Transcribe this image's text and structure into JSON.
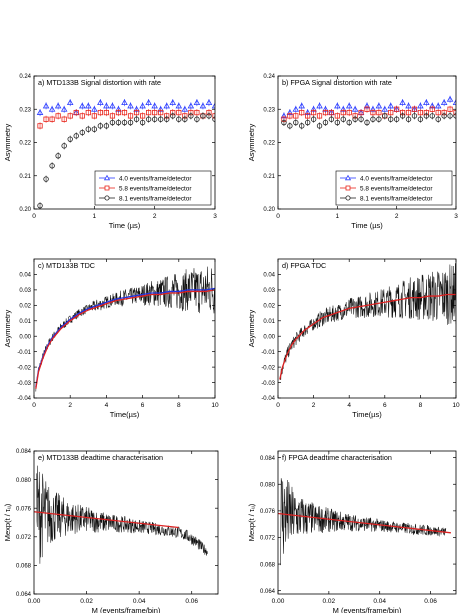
{
  "chart_data": [
    {
      "id": "a",
      "type": "scatter",
      "title": "a) MTD133B Signal distortion with rate",
      "xlabel": "Time (µs)",
      "ylabel": "Asymmetry",
      "xlim": [
        0,
        3
      ],
      "ylim": [
        0.2,
        0.24
      ],
      "xticks": [
        "0",
        "1",
        "2",
        "3"
      ],
      "yticks": [
        "0.20",
        "0.21",
        "0.22",
        "0.23",
        "0.24"
      ],
      "legend_position": "bottom-right",
      "series": [
        {
          "name": "4.0 events/frame/detector",
          "color": "#2b3cff",
          "marker": "triangle",
          "x": [
            0.1,
            0.2,
            0.3,
            0.4,
            0.5,
            0.6,
            0.7,
            0.8,
            0.9,
            1.0,
            1.1,
            1.2,
            1.3,
            1.4,
            1.5,
            1.6,
            1.7,
            1.8,
            1.9,
            2.0,
            2.1,
            2.2,
            2.3,
            2.4,
            2.5,
            2.6,
            2.7,
            2.8,
            2.9,
            3.0
          ],
          "y": [
            0.229,
            0.231,
            0.23,
            0.231,
            0.23,
            0.232,
            0.229,
            0.231,
            0.231,
            0.23,
            0.232,
            0.231,
            0.231,
            0.23,
            0.232,
            0.231,
            0.23,
            0.231,
            0.232,
            0.231,
            0.23,
            0.231,
            0.232,
            0.231,
            0.23,
            0.231,
            0.232,
            0.231,
            0.232,
            0.231
          ]
        },
        {
          "name": "5.8 events/frame/detector",
          "color": "#e8231a",
          "marker": "square",
          "x": [
            0.1,
            0.2,
            0.3,
            0.4,
            0.5,
            0.6,
            0.7,
            0.8,
            0.9,
            1.0,
            1.1,
            1.2,
            1.3,
            1.4,
            1.5,
            1.6,
            1.7,
            1.8,
            1.9,
            2.0,
            2.1,
            2.2,
            2.3,
            2.4,
            2.5,
            2.6,
            2.7,
            2.8,
            2.9,
            3.0
          ],
          "y": [
            0.225,
            0.227,
            0.227,
            0.228,
            0.227,
            0.228,
            0.229,
            0.228,
            0.229,
            0.228,
            0.229,
            0.229,
            0.228,
            0.229,
            0.229,
            0.228,
            0.229,
            0.228,
            0.229,
            0.229,
            0.229,
            0.228,
            0.229,
            0.229,
            0.228,
            0.229,
            0.229,
            0.228,
            0.229,
            0.228
          ]
        },
        {
          "name": "8.1 events/frame/detector",
          "color": "#222222",
          "marker": "circle",
          "x": [
            0.1,
            0.2,
            0.3,
            0.4,
            0.5,
            0.6,
            0.7,
            0.8,
            0.9,
            1.0,
            1.1,
            1.2,
            1.3,
            1.4,
            1.5,
            1.6,
            1.7,
            1.8,
            1.9,
            2.0,
            2.1,
            2.2,
            2.3,
            2.4,
            2.5,
            2.6,
            2.7,
            2.8,
            2.9,
            3.0
          ],
          "y": [
            0.201,
            0.209,
            0.213,
            0.216,
            0.219,
            0.221,
            0.222,
            0.223,
            0.224,
            0.224,
            0.225,
            0.225,
            0.226,
            0.226,
            0.226,
            0.226,
            0.227,
            0.226,
            0.227,
            0.227,
            0.227,
            0.227,
            0.228,
            0.227,
            0.227,
            0.228,
            0.227,
            0.228,
            0.228,
            0.227
          ]
        }
      ]
    },
    {
      "id": "b",
      "type": "scatter",
      "title": "b) FPGA Signal distortion with rate",
      "xlabel": "Time (µs)",
      "ylabel": "Asymmetry",
      "xlim": [
        0,
        3
      ],
      "ylim": [
        0.2,
        0.24
      ],
      "xticks": [
        "0",
        "1",
        "2",
        "3"
      ],
      "yticks": [
        "0.20",
        "0.21",
        "0.22",
        "0.23",
        "0.24"
      ],
      "legend_position": "bottom-right",
      "series": [
        {
          "name": "4.0 events/frame/detector",
          "color": "#2b3cff",
          "marker": "triangle",
          "x": [
            0.1,
            0.2,
            0.3,
            0.4,
            0.5,
            0.6,
            0.7,
            0.8,
            0.9,
            1.0,
            1.1,
            1.2,
            1.3,
            1.4,
            1.5,
            1.6,
            1.7,
            1.8,
            1.9,
            2.0,
            2.1,
            2.2,
            2.3,
            2.4,
            2.5,
            2.6,
            2.7,
            2.8,
            2.9,
            3.0
          ],
          "y": [
            0.228,
            0.229,
            0.23,
            0.231,
            0.229,
            0.23,
            0.231,
            0.23,
            0.229,
            0.231,
            0.23,
            0.231,
            0.23,
            0.229,
            0.231,
            0.23,
            0.231,
            0.23,
            0.231,
            0.23,
            0.232,
            0.231,
            0.23,
            0.231,
            0.232,
            0.231,
            0.231,
            0.232,
            0.233,
            0.232
          ]
        },
        {
          "name": "5.8 events/frame/detector",
          "color": "#e8231a",
          "marker": "square",
          "x": [
            0.1,
            0.2,
            0.3,
            0.4,
            0.5,
            0.6,
            0.7,
            0.8,
            0.9,
            1.0,
            1.1,
            1.2,
            1.3,
            1.4,
            1.5,
            1.6,
            1.7,
            1.8,
            1.9,
            2.0,
            2.1,
            2.2,
            2.3,
            2.4,
            2.5,
            2.6,
            2.7,
            2.8,
            2.9,
            3.0
          ],
          "y": [
            0.227,
            0.228,
            0.228,
            0.229,
            0.228,
            0.229,
            0.228,
            0.229,
            0.229,
            0.228,
            0.229,
            0.229,
            0.228,
            0.229,
            0.23,
            0.229,
            0.229,
            0.228,
            0.229,
            0.23,
            0.229,
            0.229,
            0.23,
            0.229,
            0.229,
            0.23,
            0.229,
            0.229,
            0.23,
            0.229
          ]
        },
        {
          "name": "8.1 events/frame/detector",
          "color": "#222222",
          "marker": "circle",
          "x": [
            0.1,
            0.2,
            0.3,
            0.4,
            0.5,
            0.6,
            0.7,
            0.8,
            0.9,
            1.0,
            1.1,
            1.2,
            1.3,
            1.4,
            1.5,
            1.6,
            1.7,
            1.8,
            1.9,
            2.0,
            2.1,
            2.2,
            2.3,
            2.4,
            2.5,
            2.6,
            2.7,
            2.8,
            2.9,
            3.0
          ],
          "y": [
            0.226,
            0.225,
            0.226,
            0.225,
            0.226,
            0.227,
            0.225,
            0.226,
            0.227,
            0.226,
            0.227,
            0.226,
            0.227,
            0.227,
            0.226,
            0.227,
            0.227,
            0.228,
            0.227,
            0.227,
            0.228,
            0.227,
            0.228,
            0.227,
            0.228,
            0.228,
            0.227,
            0.228,
            0.228,
            0.228
          ]
        }
      ]
    },
    {
      "id": "c",
      "type": "line",
      "title": "c) MTD133B TDC",
      "xlabel": "Time(µs)",
      "ylabel": "Asymmetry",
      "xlim": [
        0,
        10
      ],
      "ylim": [
        -0.04,
        0.05
      ],
      "xticks": [
        "0",
        "2",
        "4",
        "6",
        "8",
        "10"
      ],
      "yticks": [
        "-0.04",
        "-0.03",
        "-0.02",
        "-0.01",
        "0.00",
        "0.01",
        "0.02",
        "0.03",
        "0.04"
      ],
      "series": [
        {
          "kind": "data",
          "color": "#111111",
          "x": [
            0.1,
            0.25,
            0.5,
            0.75,
            1,
            1.5,
            2,
            2.5,
            3,
            3.5,
            4,
            4.5,
            5,
            5.5,
            6,
            6.5,
            7,
            7.5,
            8,
            8.5,
            9,
            9.5,
            10
          ],
          "y": [
            -0.033,
            -0.022,
            -0.013,
            -0.006,
            -0.001,
            0.006,
            0.011,
            0.015,
            0.018,
            0.02,
            0.022,
            0.024,
            0.025,
            0.026,
            0.027,
            0.028,
            0.028,
            0.029,
            0.029,
            0.03,
            0.03,
            0.03,
            0.031
          ],
          "noise": [
            0.002,
            0.002,
            0.002,
            0.002,
            0.002,
            0.002,
            0.002,
            0.002,
            0.002,
            0.003,
            0.003,
            0.003,
            0.004,
            0.004,
            0.005,
            0.006,
            0.007,
            0.008,
            0.009,
            0.01,
            0.011,
            0.012,
            0.013
          ]
        },
        {
          "kind": "fit",
          "color": "#2233dd",
          "x": [
            0.1,
            0.25,
            0.5,
            0.75,
            1,
            1.5,
            2,
            2.5,
            3,
            3.5,
            4,
            4.5,
            5,
            5.5,
            6,
            6.5,
            7,
            7.5,
            8,
            8.5,
            9,
            9.5,
            10
          ],
          "y": [
            -0.033,
            -0.022,
            -0.013,
            -0.006,
            -0.001,
            0.006,
            0.011,
            0.015,
            0.018,
            0.02,
            0.022,
            0.024,
            0.025,
            0.026,
            0.027,
            0.028,
            0.028,
            0.029,
            0.029,
            0.03,
            0.03,
            0.03,
            0.031
          ]
        },
        {
          "kind": "fit",
          "color": "#dd2222",
          "x": [
            0.1,
            0.25,
            0.5,
            0.75,
            1,
            1.5,
            2,
            2.5,
            3,
            3.5,
            4,
            4.5,
            5,
            5.5,
            6,
            6.5,
            7,
            7.5,
            8,
            8.5,
            9,
            9.5,
            10
          ],
          "y": [
            -0.034,
            -0.023,
            -0.014,
            -0.007,
            -0.002,
            0.005,
            0.01,
            0.014,
            0.017,
            0.019,
            0.021,
            0.023,
            0.024,
            0.025,
            0.026,
            0.027,
            0.027,
            0.028,
            0.028,
            0.029,
            0.029,
            0.029,
            0.03
          ]
        }
      ]
    },
    {
      "id": "d",
      "type": "line",
      "title": "d) FPGA TDC",
      "xlabel": "Time(µs)",
      "ylabel": "Asymmetry",
      "xlim": [
        0,
        10
      ],
      "ylim": [
        -0.04,
        0.05
      ],
      "xticks": [
        "0",
        "2",
        "4",
        "6",
        "8",
        "10"
      ],
      "yticks": [
        "-0.04",
        "-0.03",
        "-0.02",
        "-0.01",
        "0.00",
        "0.01",
        "0.02",
        "0.03",
        "0.04"
      ],
      "series": [
        {
          "kind": "data",
          "color": "#111111",
          "x": [
            0.1,
            0.25,
            0.5,
            0.75,
            1,
            1.5,
            2,
            2.5,
            3,
            3.5,
            4,
            4.5,
            5,
            5.5,
            6,
            6.5,
            7,
            7.5,
            8,
            8.5,
            9,
            9.5,
            10
          ],
          "y": [
            -0.028,
            -0.02,
            -0.012,
            -0.006,
            -0.002,
            0.004,
            0.008,
            0.012,
            0.014,
            0.016,
            0.018,
            0.019,
            0.02,
            0.021,
            0.022,
            0.023,
            0.024,
            0.025,
            0.025,
            0.026,
            0.026,
            0.027,
            0.027
          ],
          "noise": [
            0.003,
            0.003,
            0.003,
            0.003,
            0.003,
            0.003,
            0.003,
            0.004,
            0.004,
            0.004,
            0.005,
            0.005,
            0.006,
            0.006,
            0.007,
            0.008,
            0.009,
            0.01,
            0.011,
            0.012,
            0.013,
            0.014,
            0.015
          ]
        },
        {
          "kind": "fit",
          "color": "#dd2222",
          "x": [
            0.1,
            0.25,
            0.5,
            0.75,
            1,
            1.5,
            2,
            2.5,
            3,
            3.5,
            4,
            4.5,
            5,
            5.5,
            6,
            6.5,
            7,
            7.5,
            8,
            8.5,
            9,
            9.5,
            10
          ],
          "y": [
            -0.028,
            -0.02,
            -0.012,
            -0.006,
            -0.002,
            0.004,
            0.008,
            0.012,
            0.014,
            0.016,
            0.018,
            0.019,
            0.02,
            0.021,
            0.022,
            0.023,
            0.024,
            0.025,
            0.025,
            0.026,
            0.026,
            0.027,
            0.027
          ]
        }
      ]
    },
    {
      "id": "e",
      "type": "line",
      "title": "e) MTD133B deadtime characterisation",
      "xlabel": "M (events/frame/bin)",
      "ylabel": "Mexp(t / τᵤ)",
      "xlim": [
        0,
        0.07
      ],
      "ylim": [
        0.064,
        0.084
      ],
      "xticks": [
        "0.00",
        "0.02",
        "0.04",
        "0.06"
      ],
      "yticks": [
        "0.064",
        "0.068",
        "0.072",
        "0.076",
        "0.080",
        "0.084"
      ],
      "series": [
        {
          "kind": "data",
          "color": "#111111",
          "x": [
            0.001,
            0.003,
            0.006,
            0.01,
            0.015,
            0.02,
            0.025,
            0.03,
            0.035,
            0.04,
            0.045,
            0.05,
            0.055,
            0.058,
            0.061,
            0.063,
            0.065,
            0.066
          ],
          "y": [
            0.0755,
            0.0752,
            0.075,
            0.0748,
            0.0746,
            0.0744,
            0.0741,
            0.0739,
            0.0737,
            0.0734,
            0.0732,
            0.0729,
            0.0726,
            0.0722,
            0.0715,
            0.0708,
            0.0702,
            0.0699
          ],
          "noise": [
            0.006,
            0.0045,
            0.003,
            0.0022,
            0.0016,
            0.0013,
            0.0011,
            0.0009,
            0.0008,
            0.0007,
            0.0006,
            0.0006,
            0.0006,
            0.0006,
            0.0006,
            0.0006,
            0.0005,
            0.0005
          ]
        },
        {
          "kind": "fit",
          "color": "#dd2222",
          "x": [
            0.0,
            0.055
          ],
          "y": [
            0.0755,
            0.0733
          ]
        }
      ]
    },
    {
      "id": "f",
      "type": "line",
      "title": "f) FPGA deadtime characterisation",
      "xlabel": "M (events/frame/bin)",
      "ylabel": "Mexp(t / τᵤ)",
      "xlim": [
        0,
        0.07
      ],
      "ylim": [
        0.0635,
        0.085
      ],
      "xticks": [
        "0.00",
        "0.02",
        "0.04",
        "0.06"
      ],
      "yticks": [
        "0.064",
        "0.068",
        "0.072",
        "0.076",
        "0.080",
        "0.084"
      ],
      "series": [
        {
          "kind": "data",
          "color": "#111111",
          "x": [
            0.001,
            0.003,
            0.006,
            0.01,
            0.015,
            0.02,
            0.025,
            0.03,
            0.035,
            0.04,
            0.045,
            0.05,
            0.055,
            0.058,
            0.061,
            0.064,
            0.066
          ],
          "y": [
            0.0756,
            0.0754,
            0.0752,
            0.075,
            0.0748,
            0.0746,
            0.0744,
            0.0742,
            0.074,
            0.0738,
            0.0736,
            0.0734,
            0.0732,
            0.0731,
            0.073,
            0.0729,
            0.0728
          ],
          "noise": [
            0.006,
            0.0045,
            0.003,
            0.0022,
            0.0016,
            0.0013,
            0.0011,
            0.0009,
            0.0008,
            0.0007,
            0.0006,
            0.0006,
            0.0006,
            0.0006,
            0.0005,
            0.0005,
            0.0005
          ]
        },
        {
          "kind": "fit",
          "color": "#dd2222",
          "x": [
            0.0,
            0.068
          ],
          "y": [
            0.0756,
            0.0727
          ]
        }
      ]
    }
  ]
}
